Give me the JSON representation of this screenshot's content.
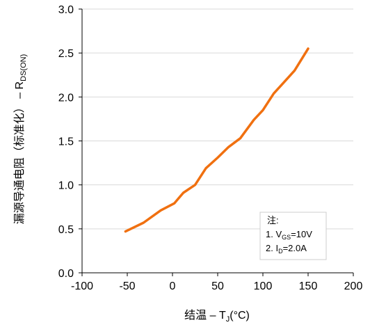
{
  "chart_data": {
    "type": "line",
    "xlim": [
      -100,
      200
    ],
    "ylim": [
      0.0,
      3.0
    ],
    "x_ticks": [
      "-100",
      "-50",
      "0",
      "50",
      "100",
      "150",
      "200"
    ],
    "y_ticks": [
      "0.0",
      "0.5",
      "1.0",
      "1.5",
      "2.0",
      "2.5",
      "3.0"
    ],
    "x_tick_values": [
      -100,
      -50,
      0,
      50,
      100,
      150,
      200
    ],
    "y_tick_values": [
      0.0,
      0.5,
      1.0,
      1.5,
      2.0,
      2.5,
      3.0
    ],
    "grid": "horizontal",
    "xlabel_main": "结温 – T",
    "xlabel_sub": "J",
    "xlabel_tail": "(°C)",
    "ylabel_main": "漏源导通电阻（标准化） – R",
    "ylabel_sub": "DS(ON)",
    "series": [
      {
        "color": "#F07010",
        "x": [
          -52,
          -32,
          -13,
          2,
          12,
          25,
          37,
          50,
          62,
          75,
          90,
          100,
          112,
          120,
          135,
          150
        ],
        "y": [
          0.47,
          0.57,
          0.71,
          0.79,
          0.91,
          1.0,
          1.19,
          1.31,
          1.43,
          1.53,
          1.74,
          1.85,
          2.04,
          2.13,
          2.3,
          2.55
        ]
      }
    ],
    "annotation": {
      "title": "注:",
      "line1_prefix": "1. V",
      "line1_sub": "GS",
      "line1_tail": "=10V",
      "line2_prefix": "2. I",
      "line2_sub": "D",
      "line2_tail": "=2.0A"
    }
  }
}
